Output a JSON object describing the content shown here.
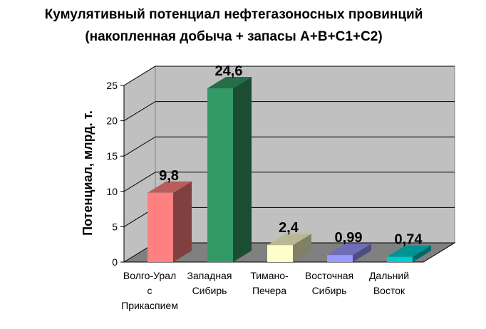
{
  "chart_data": {
    "type": "bar",
    "title_lines": [
      "Кумулятивный потенциал нефтегазоносных провинций",
      "(накопленная добыча + запасы А+В+С1+С2)"
    ],
    "ylabel": "Потенциал, млрд. т.",
    "xlabel": "",
    "ylim": [
      0,
      25
    ],
    "yticks": [
      "0",
      "5",
      "10",
      "15",
      "20",
      "25"
    ],
    "categories": [
      [
        "Волго-Урал",
        "с",
        "Прикаспием"
      ],
      [
        "Западная",
        "Сибирь"
      ],
      [
        "Тимано-",
        "Печера"
      ],
      [
        "Восточная",
        "Сибирь"
      ],
      [
        "Дальний",
        "Восток"
      ]
    ],
    "values": [
      9.8,
      24.6,
      2.4,
      0.99,
      0.74
    ],
    "value_labels": [
      "9,8",
      "24,6",
      "2,4",
      "0,99",
      "0,74"
    ],
    "colors": [
      "#ff8080",
      "#339966",
      "#ffffcc",
      "#9999ff",
      "#00cccc"
    ],
    "grid": true,
    "style": "3d"
  }
}
